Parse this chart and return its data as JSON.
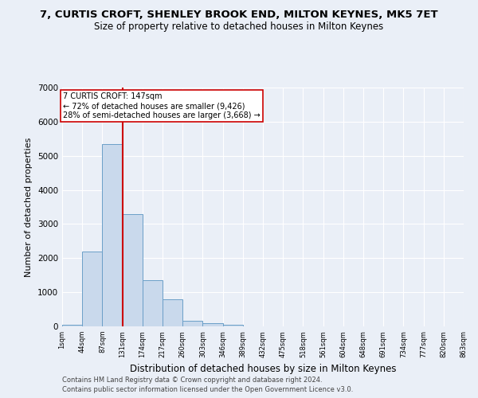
{
  "title1": "7, CURTIS CROFT, SHENLEY BROOK END, MILTON KEYNES, MK5 7ET",
  "title2": "Size of property relative to detached houses in Milton Keynes",
  "xlabel": "Distribution of detached houses by size in Milton Keynes",
  "ylabel": "Number of detached properties",
  "footnote1": "Contains HM Land Registry data © Crown copyright and database right 2024.",
  "footnote2": "Contains public sector information licensed under the Open Government Licence v3.0.",
  "bin_labels": [
    "1sqm",
    "44sqm",
    "87sqm",
    "131sqm",
    "174sqm",
    "217sqm",
    "260sqm",
    "303sqm",
    "346sqm",
    "389sqm",
    "432sqm",
    "475sqm",
    "518sqm",
    "561sqm",
    "604sqm",
    "648sqm",
    "691sqm",
    "734sqm",
    "777sqm",
    "820sqm",
    "863sqm"
  ],
  "bar_values": [
    50,
    2200,
    5350,
    3300,
    1350,
    800,
    175,
    100,
    50,
    10,
    5,
    3,
    1,
    0,
    0,
    0,
    0,
    0,
    0,
    0
  ],
  "bar_color": "#c9d9ec",
  "bar_edge_color": "#6b9fc8",
  "vline_x": 3.0,
  "vline_color": "#cc0000",
  "annotation_text": "7 CURTIS CROFT: 147sqm\n← 72% of detached houses are smaller (9,426)\n28% of semi-detached houses are larger (3,668) →",
  "annotation_box_color": "#ffffff",
  "annotation_box_edge": "#cc0000",
  "ylim": [
    0,
    7000
  ],
  "yticks": [
    0,
    1000,
    2000,
    3000,
    4000,
    5000,
    6000,
    7000
  ],
  "bg_color": "#eaeff7",
  "grid_color": "#ffffff",
  "title1_fontsize": 9.5,
  "title2_fontsize": 8.5,
  "xlabel_fontsize": 8.5,
  "ylabel_fontsize": 8.0,
  "footnote_fontsize": 6.0
}
